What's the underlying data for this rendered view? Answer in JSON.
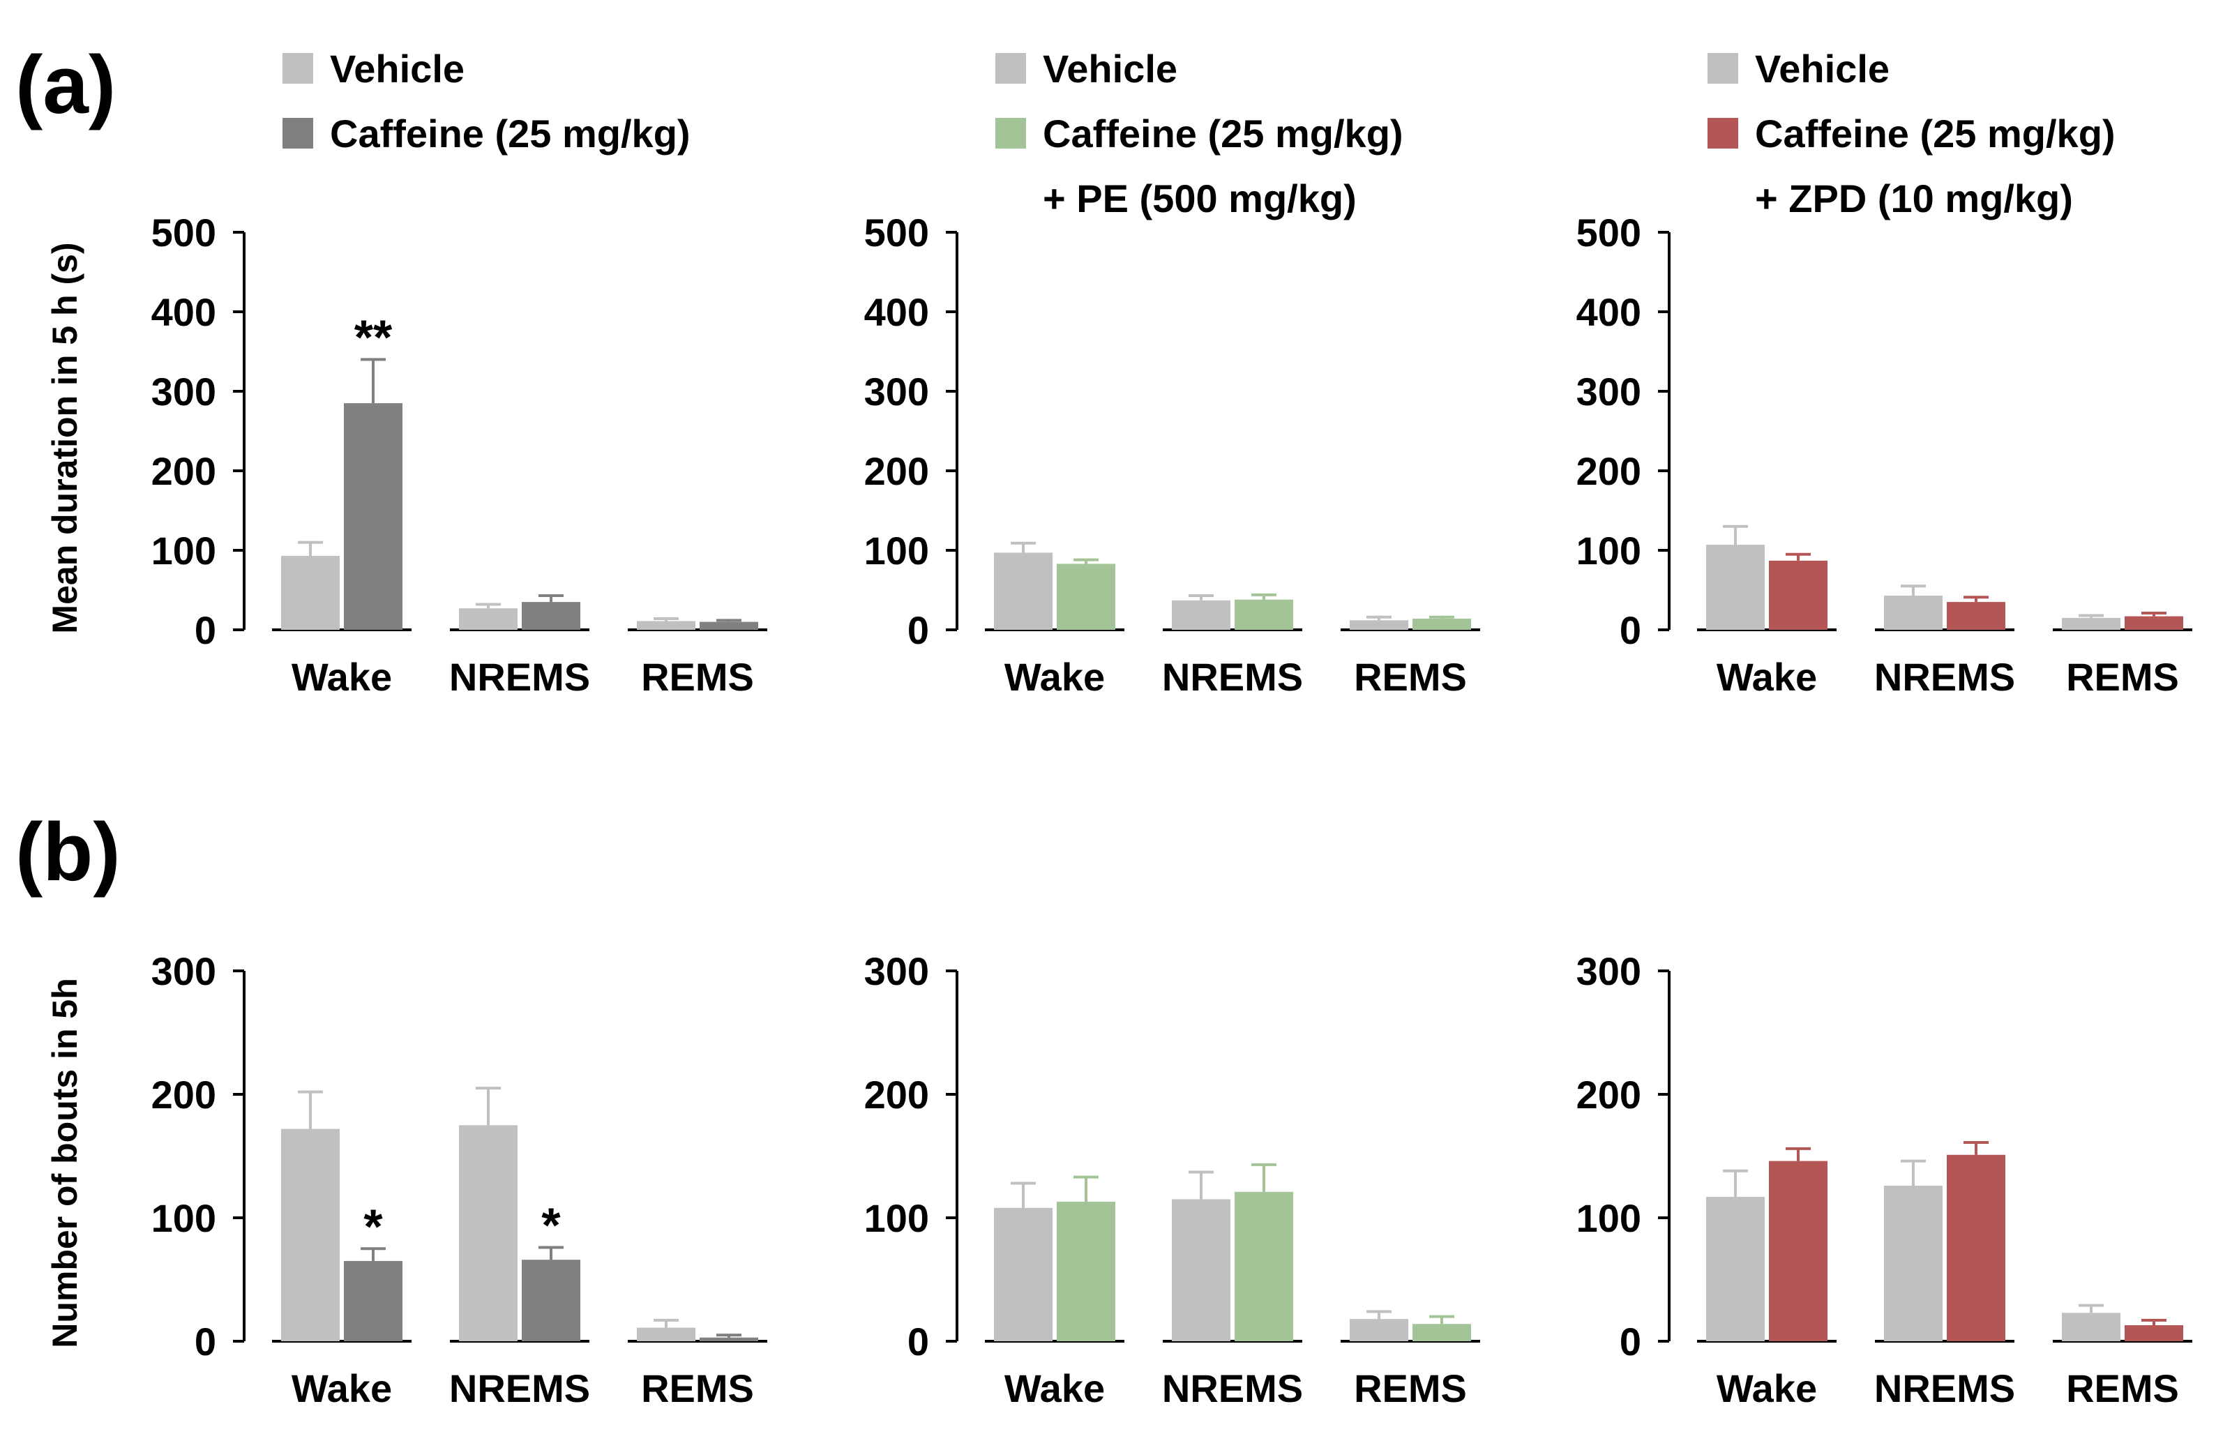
{
  "panel_labels": {
    "a": "(a)",
    "b": "(b)"
  },
  "colors": {
    "vehicle": "#c0c0c0",
    "caffeine": "#808080",
    "caffeine_pe": "#a3c497",
    "caffeine_zpd": "#b55656"
  },
  "chart_data": [
    {
      "type": "bar",
      "panel": "(a)",
      "ylabel": "Mean duration in 5 h (s)",
      "ylim": [
        0,
        500
      ],
      "yticks": [
        "0",
        "100",
        "200",
        "300",
        "400",
        "500"
      ],
      "categories": [
        "Wake",
        "NREMS",
        "REMS"
      ],
      "legend": [
        "Vehicle",
        "Caffeine (25 mg/kg)"
      ],
      "series": [
        {
          "name": "Vehicle",
          "color": "#c0c0c0",
          "values": [
            93,
            27,
            11
          ],
          "errors": [
            17,
            5,
            3
          ]
        },
        {
          "name": "Caffeine (25 mg/kg)",
          "color": "#808080",
          "values": [
            285,
            35,
            10
          ],
          "errors": [
            55,
            8,
            2
          ]
        }
      ],
      "significance": [
        {
          "series": 1,
          "category": 0,
          "label": "**"
        }
      ]
    },
    {
      "type": "bar",
      "panel": "(a)",
      "ylabel": "",
      "ylim": [
        0,
        500
      ],
      "yticks": [
        "0",
        "100",
        "200",
        "300",
        "400",
        "500"
      ],
      "categories": [
        "Wake",
        "NREMS",
        "REMS"
      ],
      "legend": [
        "Vehicle",
        "Caffeine (25 mg/kg)",
        "+ PE (500 mg/kg)"
      ],
      "series": [
        {
          "name": "Vehicle",
          "color": "#c0c0c0",
          "values": [
            97,
            37,
            12
          ],
          "errors": [
            12,
            6,
            4
          ]
        },
        {
          "name": "Caffeine (25 mg/kg) + PE (500 mg/kg)",
          "color": "#a3c497",
          "values": [
            83,
            38,
            14
          ],
          "errors": [
            5,
            6,
            2
          ]
        }
      ],
      "significance": []
    },
    {
      "type": "bar",
      "panel": "(a)",
      "ylabel": "",
      "ylim": [
        0,
        500
      ],
      "yticks": [
        "0",
        "100",
        "200",
        "300",
        "400",
        "500"
      ],
      "categories": [
        "Wake",
        "NREMS",
        "REMS"
      ],
      "legend": [
        "Vehicle",
        "Caffeine (25 mg/kg)",
        "+ ZPD (10 mg/kg)"
      ],
      "series": [
        {
          "name": "Vehicle",
          "color": "#c0c0c0",
          "values": [
            107,
            43,
            15
          ],
          "errors": [
            23,
            12,
            3
          ]
        },
        {
          "name": "Caffeine (25 mg/kg) + ZPD (10 mg/kg)",
          "color": "#b55656",
          "values": [
            87,
            35,
            17
          ],
          "errors": [
            8,
            6,
            4
          ]
        }
      ],
      "significance": []
    },
    {
      "type": "bar",
      "panel": "(b)",
      "ylabel": "Number of bouts in 5h",
      "ylim": [
        0,
        300
      ],
      "yticks": [
        "0",
        "100",
        "200",
        "300"
      ],
      "categories": [
        "Wake",
        "NREMS",
        "REMS"
      ],
      "legend": [],
      "series": [
        {
          "name": "Vehicle",
          "color": "#c0c0c0",
          "values": [
            172,
            175,
            11
          ],
          "errors": [
            30,
            30,
            6
          ]
        },
        {
          "name": "Caffeine (25 mg/kg)",
          "color": "#808080",
          "values": [
            65,
            66,
            3
          ],
          "errors": [
            10,
            10,
            2
          ]
        }
      ],
      "significance": [
        {
          "series": 1,
          "category": 0,
          "label": "*"
        },
        {
          "series": 1,
          "category": 1,
          "label": "*"
        }
      ]
    },
    {
      "type": "bar",
      "panel": "(b)",
      "ylabel": "",
      "ylim": [
        0,
        300
      ],
      "yticks": [
        "0",
        "100",
        "200",
        "300"
      ],
      "categories": [
        "Wake",
        "NREMS",
        "REMS"
      ],
      "legend": [],
      "series": [
        {
          "name": "Vehicle",
          "color": "#c0c0c0",
          "values": [
            108,
            115,
            18
          ],
          "errors": [
            20,
            22,
            6
          ]
        },
        {
          "name": "Caffeine (25 mg/kg) + PE (500 mg/kg)",
          "color": "#a3c497",
          "values": [
            113,
            121,
            14
          ],
          "errors": [
            20,
            22,
            6
          ]
        }
      ],
      "significance": []
    },
    {
      "type": "bar",
      "panel": "(b)",
      "ylabel": "",
      "ylim": [
        0,
        300
      ],
      "yticks": [
        "0",
        "100",
        "200",
        "300"
      ],
      "categories": [
        "Wake",
        "NREMS",
        "REMS"
      ],
      "legend": [],
      "series": [
        {
          "name": "Vehicle",
          "color": "#c0c0c0",
          "values": [
            117,
            126,
            23
          ],
          "errors": [
            21,
            20,
            6
          ]
        },
        {
          "name": "Caffeine (25 mg/kg) + ZPD (10 mg/kg)",
          "color": "#b55656",
          "values": [
            146,
            151,
            13
          ],
          "errors": [
            10,
            10,
            4
          ]
        }
      ],
      "significance": []
    }
  ]
}
